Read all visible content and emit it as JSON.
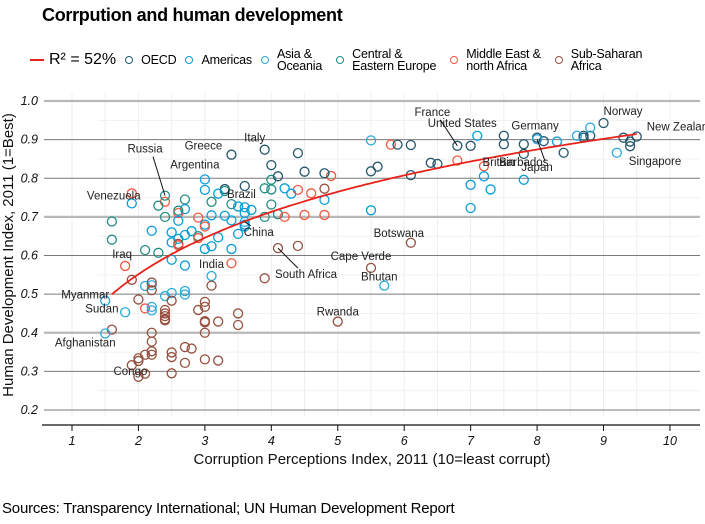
{
  "title": "Corrpution and human development",
  "source": "Sources: Transparency International; UN Human Development Report",
  "legend": {
    "fit_label": "R² = 52%",
    "fit_color": "#e8221a",
    "regions": [
      {
        "key": "oecd",
        "label": "OECD",
        "color": "#24576d"
      },
      {
        "key": "americas",
        "label": "Americas",
        "color": "#099dd7"
      },
      {
        "key": "asia",
        "label": "Asia &\nOceania",
        "color": "#28aadc"
      },
      {
        "key": "cee",
        "label": "Central &\nEastern Europe",
        "color": "#248e84"
      },
      {
        "key": "mena",
        "label": "Middle East &\nnorth Africa",
        "color": "#f2583f"
      },
      {
        "key": "ssa",
        "label": "Sub-Saharan\nAfrica",
        "color": "#96503f"
      }
    ]
  },
  "chart_data": {
    "type": "scatter",
    "title": "Corrpution and human development",
    "xlabel": "Corruption Perceptions Index, 2011 (10=least corrupt)",
    "ylabel": "Human Development Index, 2011 (1=Best)",
    "xlim": [
      0.6,
      10.4
    ],
    "ylim": [
      0.2,
      1.0
    ],
    "xticks": [
      1,
      2,
      3,
      4,
      5,
      6,
      7,
      8,
      9,
      10
    ],
    "yticks": [
      "0.2",
      "0.3",
      "0.4",
      "0.5",
      "0.6",
      "0.7",
      "0.8",
      "0.9",
      "1.0"
    ],
    "grid": true,
    "legend_position": "top",
    "fit": {
      "type": "log",
      "r_squared": "52%",
      "x_range": [
        1.6,
        9.5
      ],
      "a": 0.39,
      "b": 0.233
    },
    "points": [
      {
        "x": 9.5,
        "y": 0.908,
        "region": "oecd",
        "label": "New Zealand"
      },
      {
        "x": 9.4,
        "y": 0.883,
        "region": "oecd"
      },
      {
        "x": 9.4,
        "y": 0.895,
        "region": "oecd"
      },
      {
        "x": 9.3,
        "y": 0.905,
        "region": "oecd"
      },
      {
        "x": 9.0,
        "y": 0.943,
        "region": "oecd",
        "label": "Norway"
      },
      {
        "x": 8.8,
        "y": 0.91,
        "region": "oecd"
      },
      {
        "x": 8.7,
        "y": 0.905,
        "region": "oecd"
      },
      {
        "x": 8.8,
        "y": 0.931,
        "region": "asia"
      },
      {
        "x": 8.7,
        "y": 0.91,
        "region": "oecd"
      },
      {
        "x": 8.6,
        "y": 0.91,
        "region": "asia"
      },
      {
        "x": 9.2,
        "y": 0.866,
        "region": "asia",
        "label": "Singapore"
      },
      {
        "x": 8.4,
        "y": 0.866,
        "region": "oecd"
      },
      {
        "x": 8.1,
        "y": 0.896,
        "region": "oecd"
      },
      {
        "x": 8.0,
        "y": 0.905,
        "region": "oecd",
        "label": "Germany"
      },
      {
        "x": 8.0,
        "y": 0.901,
        "region": "asia",
        "label": "Japan"
      },
      {
        "x": 8.3,
        "y": 0.895,
        "region": "oecd"
      },
      {
        "x": 8.3,
        "y": 0.895,
        "region": "asia"
      },
      {
        "x": 7.8,
        "y": 0.863,
        "region": "oecd",
        "label": "Britain"
      },
      {
        "x": 7.8,
        "y": 0.888,
        "region": "oecd"
      },
      {
        "x": 7.8,
        "y": 0.796,
        "region": "americas",
        "label": "Barbados"
      },
      {
        "x": 7.5,
        "y": 0.888,
        "region": "oecd"
      },
      {
        "x": 7.5,
        "y": 0.91,
        "region": "oecd"
      },
      {
        "x": 7.1,
        "y": 0.91,
        "region": "americas",
        "label": "United States"
      },
      {
        "x": 7.0,
        "y": 0.884,
        "region": "oecd"
      },
      {
        "x": 6.8,
        "y": 0.884,
        "region": "oecd",
        "label": "France"
      },
      {
        "x": 6.8,
        "y": 0.846,
        "region": "mena"
      },
      {
        "x": 7.2,
        "y": 0.831,
        "region": "mena"
      },
      {
        "x": 7.2,
        "y": 0.805,
        "region": "americas"
      },
      {
        "x": 7.0,
        "y": 0.783,
        "region": "americas"
      },
      {
        "x": 7.3,
        "y": 0.771,
        "region": "americas"
      },
      {
        "x": 7.0,
        "y": 0.723,
        "region": "americas"
      },
      {
        "x": 6.1,
        "y": 0.886,
        "region": "oecd"
      },
      {
        "x": 6.4,
        "y": 0.84,
        "region": "oecd"
      },
      {
        "x": 6.5,
        "y": 0.837,
        "region": "oecd"
      },
      {
        "x": 6.1,
        "y": 0.808,
        "region": "oecd"
      },
      {
        "x": 5.8,
        "y": 0.887,
        "region": "mena"
      },
      {
        "x": 5.9,
        "y": 0.887,
        "region": "oecd"
      },
      {
        "x": 5.5,
        "y": 0.898,
        "region": "asia"
      },
      {
        "x": 5.6,
        "y": 0.83,
        "region": "oecd"
      },
      {
        "x": 5.5,
        "y": 0.818,
        "region": "oecd"
      },
      {
        "x": 5.5,
        "y": 0.717,
        "region": "americas"
      },
      {
        "x": 6.1,
        "y": 0.633,
        "region": "ssa",
        "label": "Botswana"
      },
      {
        "x": 5.5,
        "y": 0.568,
        "region": "ssa",
        "label": "Cape Verde"
      },
      {
        "x": 5.7,
        "y": 0.522,
        "region": "asia",
        "label": "Bhutan"
      },
      {
        "x": 5.0,
        "y": 0.429,
        "region": "ssa",
        "label": "Rwanda"
      },
      {
        "x": 4.9,
        "y": 0.806,
        "region": "mena"
      },
      {
        "x": 4.8,
        "y": 0.813,
        "region": "oecd"
      },
      {
        "x": 4.4,
        "y": 0.865,
        "region": "oecd"
      },
      {
        "x": 4.0,
        "y": 0.834,
        "region": "oecd"
      },
      {
        "x": 4.5,
        "y": 0.817,
        "region": "oecd"
      },
      {
        "x": 4.8,
        "y": 0.773,
        "region": "ssa"
      },
      {
        "x": 4.8,
        "y": 0.744,
        "region": "americas"
      },
      {
        "x": 4.6,
        "y": 0.761,
        "region": "mena"
      },
      {
        "x": 4.4,
        "y": 0.77,
        "region": "mena"
      },
      {
        "x": 4.2,
        "y": 0.774,
        "region": "americas"
      },
      {
        "x": 4.0,
        "y": 0.796,
        "region": "cee"
      },
      {
        "x": 4.0,
        "y": 0.771,
        "region": "cee"
      },
      {
        "x": 4.1,
        "y": 0.805,
        "region": "oecd"
      },
      {
        "x": 4.3,
        "y": 0.76,
        "region": "americas"
      },
      {
        "x": 4.8,
        "y": 0.705,
        "region": "mena"
      },
      {
        "x": 4.5,
        "y": 0.705,
        "region": "mena"
      },
      {
        "x": 4.1,
        "y": 0.707,
        "region": "cee"
      },
      {
        "x": 4.2,
        "y": 0.7,
        "region": "mena"
      },
      {
        "x": 3.9,
        "y": 0.774,
        "region": "cee"
      },
      {
        "x": 3.7,
        "y": 0.718,
        "region": "americas",
        "label": "Brazil"
      },
      {
        "x": 3.6,
        "y": 0.687,
        "region": "asia",
        "label": "China"
      },
      {
        "x": 3.4,
        "y": 0.861,
        "region": "oecd",
        "label": "Greece"
      },
      {
        "x": 3.9,
        "y": 0.874,
        "region": "oecd",
        "label": "Italy"
      },
      {
        "x": 3.6,
        "y": 0.78,
        "region": "oecd"
      },
      {
        "x": 4.1,
        "y": 0.619,
        "region": "ssa",
        "label": "South Africa"
      },
      {
        "x": 4.4,
        "y": 0.625,
        "region": "ssa"
      },
      {
        "x": 4.0,
        "y": 0.732,
        "region": "cee"
      },
      {
        "x": 3.9,
        "y": 0.7,
        "region": "cee"
      },
      {
        "x": 3.0,
        "y": 0.797,
        "region": "americas",
        "label": "Argentina"
      },
      {
        "x": 3.0,
        "y": 0.77,
        "region": "americas"
      },
      {
        "x": 3.3,
        "y": 0.772,
        "region": "oecd"
      },
      {
        "x": 3.3,
        "y": 0.767,
        "region": "cee"
      },
      {
        "x": 3.2,
        "y": 0.76,
        "region": "americas"
      },
      {
        "x": 3.1,
        "y": 0.739,
        "region": "cee"
      },
      {
        "x": 3.4,
        "y": 0.733,
        "region": "cee"
      },
      {
        "x": 3.5,
        "y": 0.727,
        "region": "americas"
      },
      {
        "x": 3.6,
        "y": 0.725,
        "region": "americas"
      },
      {
        "x": 3.6,
        "y": 0.71,
        "region": "americas"
      },
      {
        "x": 3.3,
        "y": 0.703,
        "region": "americas"
      },
      {
        "x": 3.4,
        "y": 0.691,
        "region": "americas"
      },
      {
        "x": 3.6,
        "y": 0.68,
        "region": "americas"
      },
      {
        "x": 3.6,
        "y": 0.675,
        "region": "americas"
      },
      {
        "x": 3.1,
        "y": 0.704,
        "region": "americas"
      },
      {
        "x": 3.0,
        "y": 0.68,
        "region": "americas"
      },
      {
        "x": 3.0,
        "y": 0.675,
        "region": "mena"
      },
      {
        "x": 2.9,
        "y": 0.698,
        "region": "mena"
      },
      {
        "x": 2.7,
        "y": 0.745,
        "region": "cee"
      },
      {
        "x": 2.7,
        "y": 0.72,
        "region": "americas"
      },
      {
        "x": 2.6,
        "y": 0.71,
        "region": "mena"
      },
      {
        "x": 2.6,
        "y": 0.716,
        "region": "cee"
      },
      {
        "x": 2.6,
        "y": 0.69,
        "region": "americas"
      },
      {
        "x": 2.4,
        "y": 0.739,
        "region": "mena"
      },
      {
        "x": 2.4,
        "y": 0.755,
        "region": "cee",
        "label": "Russia"
      },
      {
        "x": 2.3,
        "y": 0.729,
        "region": "cee"
      },
      {
        "x": 2.4,
        "y": 0.7,
        "region": "cee"
      },
      {
        "x": 1.9,
        "y": 0.761,
        "region": "mena"
      },
      {
        "x": 1.9,
        "y": 0.735,
        "region": "americas",
        "label": "Venezuela"
      },
      {
        "x": 1.6,
        "y": 0.688,
        "region": "cee"
      },
      {
        "x": 1.6,
        "y": 0.641,
        "region": "cee"
      },
      {
        "x": 2.2,
        "y": 0.664,
        "region": "americas"
      },
      {
        "x": 2.5,
        "y": 0.66,
        "region": "americas"
      },
      {
        "x": 2.7,
        "y": 0.653,
        "region": "americas"
      },
      {
        "x": 2.8,
        "y": 0.663,
        "region": "americas"
      },
      {
        "x": 2.9,
        "y": 0.65,
        "region": "cee"
      },
      {
        "x": 2.9,
        "y": 0.645,
        "region": "mena"
      },
      {
        "x": 2.6,
        "y": 0.643,
        "region": "americas"
      },
      {
        "x": 2.5,
        "y": 0.634,
        "region": "americas"
      },
      {
        "x": 2.6,
        "y": 0.63,
        "region": "ssa"
      },
      {
        "x": 2.6,
        "y": 0.626,
        "region": "mena"
      },
      {
        "x": 2.1,
        "y": 0.614,
        "region": "cee"
      },
      {
        "x": 2.3,
        "y": 0.607,
        "region": "cee"
      },
      {
        "x": 2.5,
        "y": 0.589,
        "region": "americas"
      },
      {
        "x": 2.7,
        "y": 0.574,
        "region": "americas"
      },
      {
        "x": 3.0,
        "y": 0.617,
        "region": "americas"
      },
      {
        "x": 3.1,
        "y": 0.624,
        "region": "americas"
      },
      {
        "x": 3.2,
        "y": 0.647,
        "region": "americas"
      },
      {
        "x": 3.4,
        "y": 0.617,
        "region": "americas"
      },
      {
        "x": 3.5,
        "y": 0.656,
        "region": "americas"
      },
      {
        "x": 3.4,
        "y": 0.58,
        "region": "mena"
      },
      {
        "x": 3.1,
        "y": 0.547,
        "region": "asia",
        "label": "India"
      },
      {
        "x": 3.1,
        "y": 0.522,
        "region": "ssa"
      },
      {
        "x": 3.9,
        "y": 0.541,
        "region": "ssa"
      },
      {
        "x": 1.8,
        "y": 0.573,
        "region": "mena",
        "label": "Iraq"
      },
      {
        "x": 1.5,
        "y": 0.483,
        "region": "asia",
        "label": "Myanmar"
      },
      {
        "x": 1.6,
        "y": 0.408,
        "region": "ssa",
        "label": "Sudan"
      },
      {
        "x": 1.5,
        "y": 0.398,
        "region": "asia",
        "label": "Afghanistan"
      },
      {
        "x": 1.8,
        "y": 0.453,
        "region": "asia"
      },
      {
        "x": 1.9,
        "y": 0.537,
        "region": "ssa"
      },
      {
        "x": 2.1,
        "y": 0.521,
        "region": "asia"
      },
      {
        "x": 2.2,
        "y": 0.523,
        "region": "asia"
      },
      {
        "x": 2.2,
        "y": 0.53,
        "region": "ssa"
      },
      {
        "x": 2.2,
        "y": 0.51,
        "region": "ssa"
      },
      {
        "x": 2.0,
        "y": 0.486,
        "region": "ssa"
      },
      {
        "x": 2.1,
        "y": 0.463,
        "region": "mena"
      },
      {
        "x": 2.2,
        "y": 0.467,
        "region": "asia"
      },
      {
        "x": 2.2,
        "y": 0.458,
        "region": "asia"
      },
      {
        "x": 2.4,
        "y": 0.495,
        "region": "asia"
      },
      {
        "x": 2.5,
        "y": 0.503,
        "region": "asia"
      },
      {
        "x": 2.5,
        "y": 0.483,
        "region": "ssa"
      },
      {
        "x": 2.7,
        "y": 0.508,
        "region": "asia"
      },
      {
        "x": 2.7,
        "y": 0.499,
        "region": "asia"
      },
      {
        "x": 2.4,
        "y": 0.459,
        "region": "ssa"
      },
      {
        "x": 2.4,
        "y": 0.45,
        "region": "ssa"
      },
      {
        "x": 2.4,
        "y": 0.443,
        "region": "ssa"
      },
      {
        "x": 2.4,
        "y": 0.435,
        "region": "ssa"
      },
      {
        "x": 2.4,
        "y": 0.432,
        "region": "ssa"
      },
      {
        "x": 2.9,
        "y": 0.459,
        "region": "ssa"
      },
      {
        "x": 3.0,
        "y": 0.48,
        "region": "ssa"
      },
      {
        "x": 3.0,
        "y": 0.467,
        "region": "ssa"
      },
      {
        "x": 3.0,
        "y": 0.43,
        "region": "ssa"
      },
      {
        "x": 3.0,
        "y": 0.427,
        "region": "ssa"
      },
      {
        "x": 3.2,
        "y": 0.429,
        "region": "ssa"
      },
      {
        "x": 3.5,
        "y": 0.45,
        "region": "ssa"
      },
      {
        "x": 3.5,
        "y": 0.42,
        "region": "ssa"
      },
      {
        "x": 2.2,
        "y": 0.4,
        "region": "ssa"
      },
      {
        "x": 2.2,
        "y": 0.377,
        "region": "ssa"
      },
      {
        "x": 2.2,
        "y": 0.352,
        "region": "ssa"
      },
      {
        "x": 2.2,
        "y": 0.343,
        "region": "ssa"
      },
      {
        "x": 2.1,
        "y": 0.343,
        "region": "ssa"
      },
      {
        "x": 2.0,
        "y": 0.334,
        "region": "ssa"
      },
      {
        "x": 2.0,
        "y": 0.327,
        "region": "ssa"
      },
      {
        "x": 1.9,
        "y": 0.316,
        "region": "ssa"
      },
      {
        "x": 2.0,
        "y": 0.286,
        "region": "ssa",
        "label": "Congo"
      },
      {
        "x": 2.1,
        "y": 0.294,
        "region": "ssa"
      },
      {
        "x": 2.5,
        "y": 0.349,
        "region": "ssa"
      },
      {
        "x": 2.5,
        "y": 0.337,
        "region": "ssa"
      },
      {
        "x": 2.5,
        "y": 0.295,
        "region": "ssa"
      },
      {
        "x": 2.7,
        "y": 0.363,
        "region": "ssa"
      },
      {
        "x": 2.8,
        "y": 0.359,
        "region": "ssa"
      },
      {
        "x": 2.7,
        "y": 0.322,
        "region": "ssa"
      },
      {
        "x": 3.0,
        "y": 0.331,
        "region": "ssa"
      },
      {
        "x": 3.2,
        "y": 0.328,
        "region": "ssa"
      },
      {
        "x": 3.0,
        "y": 0.4,
        "region": "ssa"
      }
    ]
  }
}
